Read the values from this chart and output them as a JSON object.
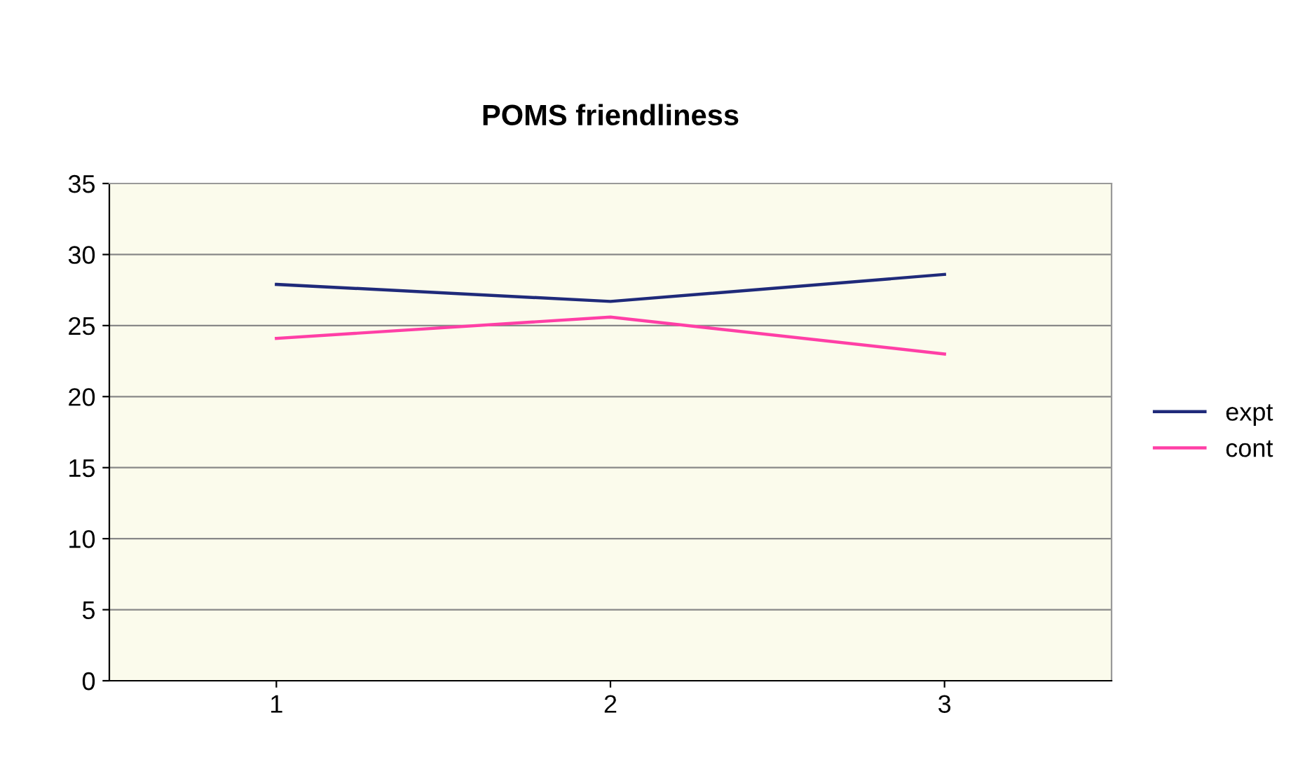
{
  "chart_data": {
    "type": "line",
    "title": "POMS friendliness",
    "categories": [
      "1",
      "2",
      "3"
    ],
    "series": [
      {
        "name": "expt",
        "color": "#1f2a7a",
        "values": [
          27.9,
          26.7,
          28.6
        ]
      },
      {
        "name": "cont",
        "color": "#ff3fa6",
        "values": [
          24.1,
          25.6,
          23.0
        ]
      }
    ],
    "ylim": [
      0,
      35
    ],
    "yticks": [
      0,
      5,
      10,
      15,
      20,
      25,
      30,
      35
    ],
    "grid": "y",
    "legend": "right",
    "marker": "none",
    "line_style": "solid"
  }
}
